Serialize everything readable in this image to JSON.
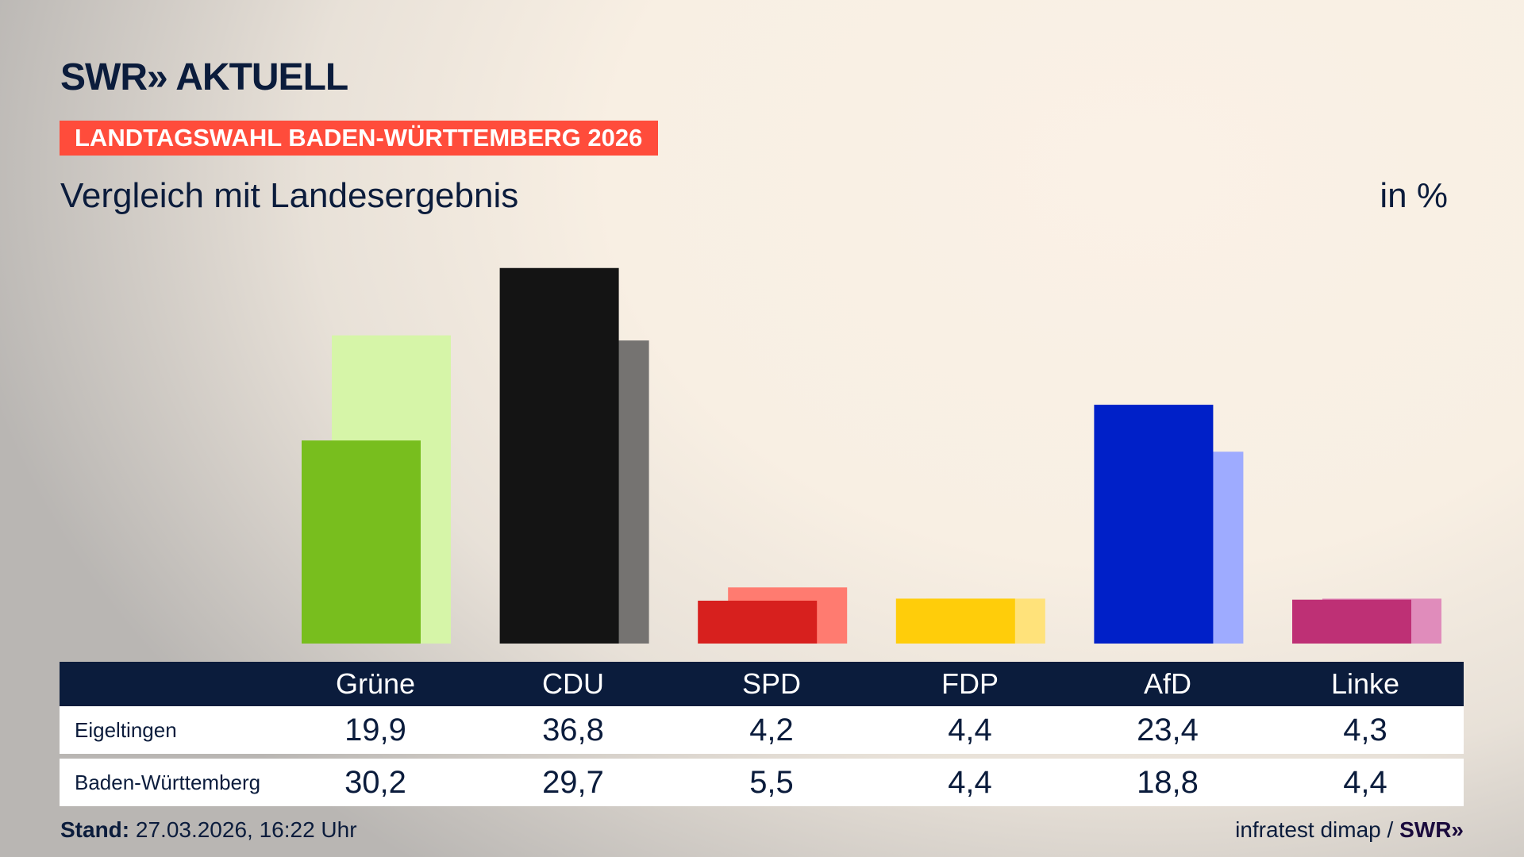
{
  "header": {
    "logo": "SWR» AKTUELL",
    "banner": "LANDTAGSWAHL BADEN-WÜRTTEMBERG 2026",
    "subtitle": "Vergleich mit Landesergebnis",
    "unit": "in %"
  },
  "chart_data": {
    "type": "bar",
    "title": "Vergleich mit Landesergebnis",
    "ylabel": "in %",
    "ylim": [
      0,
      40
    ],
    "grid": false,
    "categories": [
      "Grüne",
      "CDU",
      "SPD",
      "FDP",
      "AfD",
      "Linke"
    ],
    "series": [
      {
        "name": "Eigeltingen",
        "values": [
          19.9,
          36.8,
          4.2,
          4.4,
          23.4,
          4.3
        ],
        "colors": [
          "#78be1e",
          "#141414",
          "#d7201e",
          "#ffcd0a",
          "#0020c8",
          "#be3075"
        ]
      },
      {
        "name": "Baden-Württemberg",
        "values": [
          30.2,
          29.7,
          5.5,
          4.4,
          18.8,
          4.4
        ],
        "colors": [
          "#d6f5a8",
          "#757371",
          "#ff7b70",
          "#ffe27a",
          "#9eabff",
          "#e08cbb"
        ]
      }
    ]
  },
  "table": {
    "headers": [
      "Grüne",
      "CDU",
      "SPD",
      "FDP",
      "AfD",
      "Linke"
    ],
    "rows": [
      {
        "label": "Eigeltingen",
        "values": [
          "19,9",
          "36,8",
          "4,2",
          "4,4",
          "23,4",
          "4,3"
        ]
      },
      {
        "label": "Baden-Württemberg",
        "values": [
          "30,2",
          "29,7",
          "5,5",
          "4,4",
          "18,8",
          "4,4"
        ]
      }
    ]
  },
  "footer": {
    "stand_label": "Stand:",
    "stand_value": "27.03.2026, 16:22 Uhr",
    "source": "infratest dimap /",
    "source_logo": "SWR»"
  }
}
